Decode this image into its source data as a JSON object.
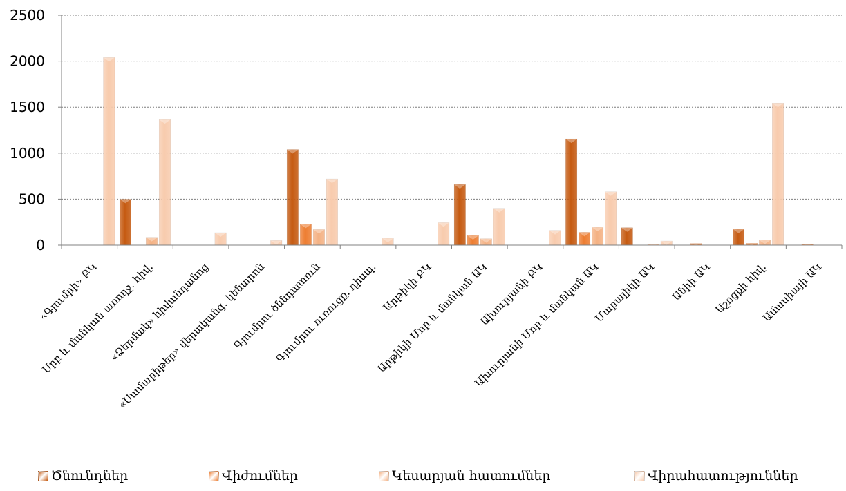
{
  "chart_data": {
    "type": "bar",
    "categories": [
      "«Գյումրի» ԲԿ",
      "Սրբ և մանկան առողջ. հիվ.",
      "«Ձերմակ» հիվանդանոց",
      "«Սամարիթեր» վերականգ. կենտրոն",
      "Գյումրու ծննդատուն",
      "Գյումրու ուռուցք. դիսպ.",
      "Արթիկի ԲԿ",
      "Արթիկի Մոր և մանկան ԱԿ",
      "Ախուրյանի ԲԿ",
      "Ախուրյանի Մոր և մանկան ԱԿ",
      "Մարալիկի ԱԿ",
      "Անիի ԱԿ",
      "Աշոցքի հիվ.",
      "Ամասիայի ԱԿ"
    ],
    "series": [
      {
        "name": "Ծնունդներ",
        "color": "#C55A11",
        "values": [
          0,
          500,
          0,
          0,
          1040,
          0,
          0,
          660,
          0,
          1155,
          190,
          0,
          175,
          0
        ]
      },
      {
        "name": "Վիժումներ",
        "color": "#ED7D31",
        "values": [
          0,
          0,
          0,
          0,
          230,
          0,
          0,
          105,
          0,
          140,
          0,
          18,
          20,
          10
        ]
      },
      {
        "name": "Կեսարյան հատումներ",
        "color": "#F4B183",
        "values": [
          0,
          85,
          0,
          0,
          170,
          0,
          0,
          70,
          0,
          195,
          10,
          0,
          55,
          0
        ]
      },
      {
        "name": "Վիրահատություններ",
        "color": "#F8CBAD",
        "values": [
          2040,
          1365,
          135,
          50,
          720,
          75,
          245,
          400,
          160,
          580,
          45,
          0,
          1545,
          0
        ]
      }
    ],
    "ylim": [
      0,
      2500
    ],
    "yticks": [
      "0",
      "500",
      "1000",
      "1500",
      "2000",
      "2500"
    ],
    "grid": true,
    "legend_position": "bottom"
  }
}
